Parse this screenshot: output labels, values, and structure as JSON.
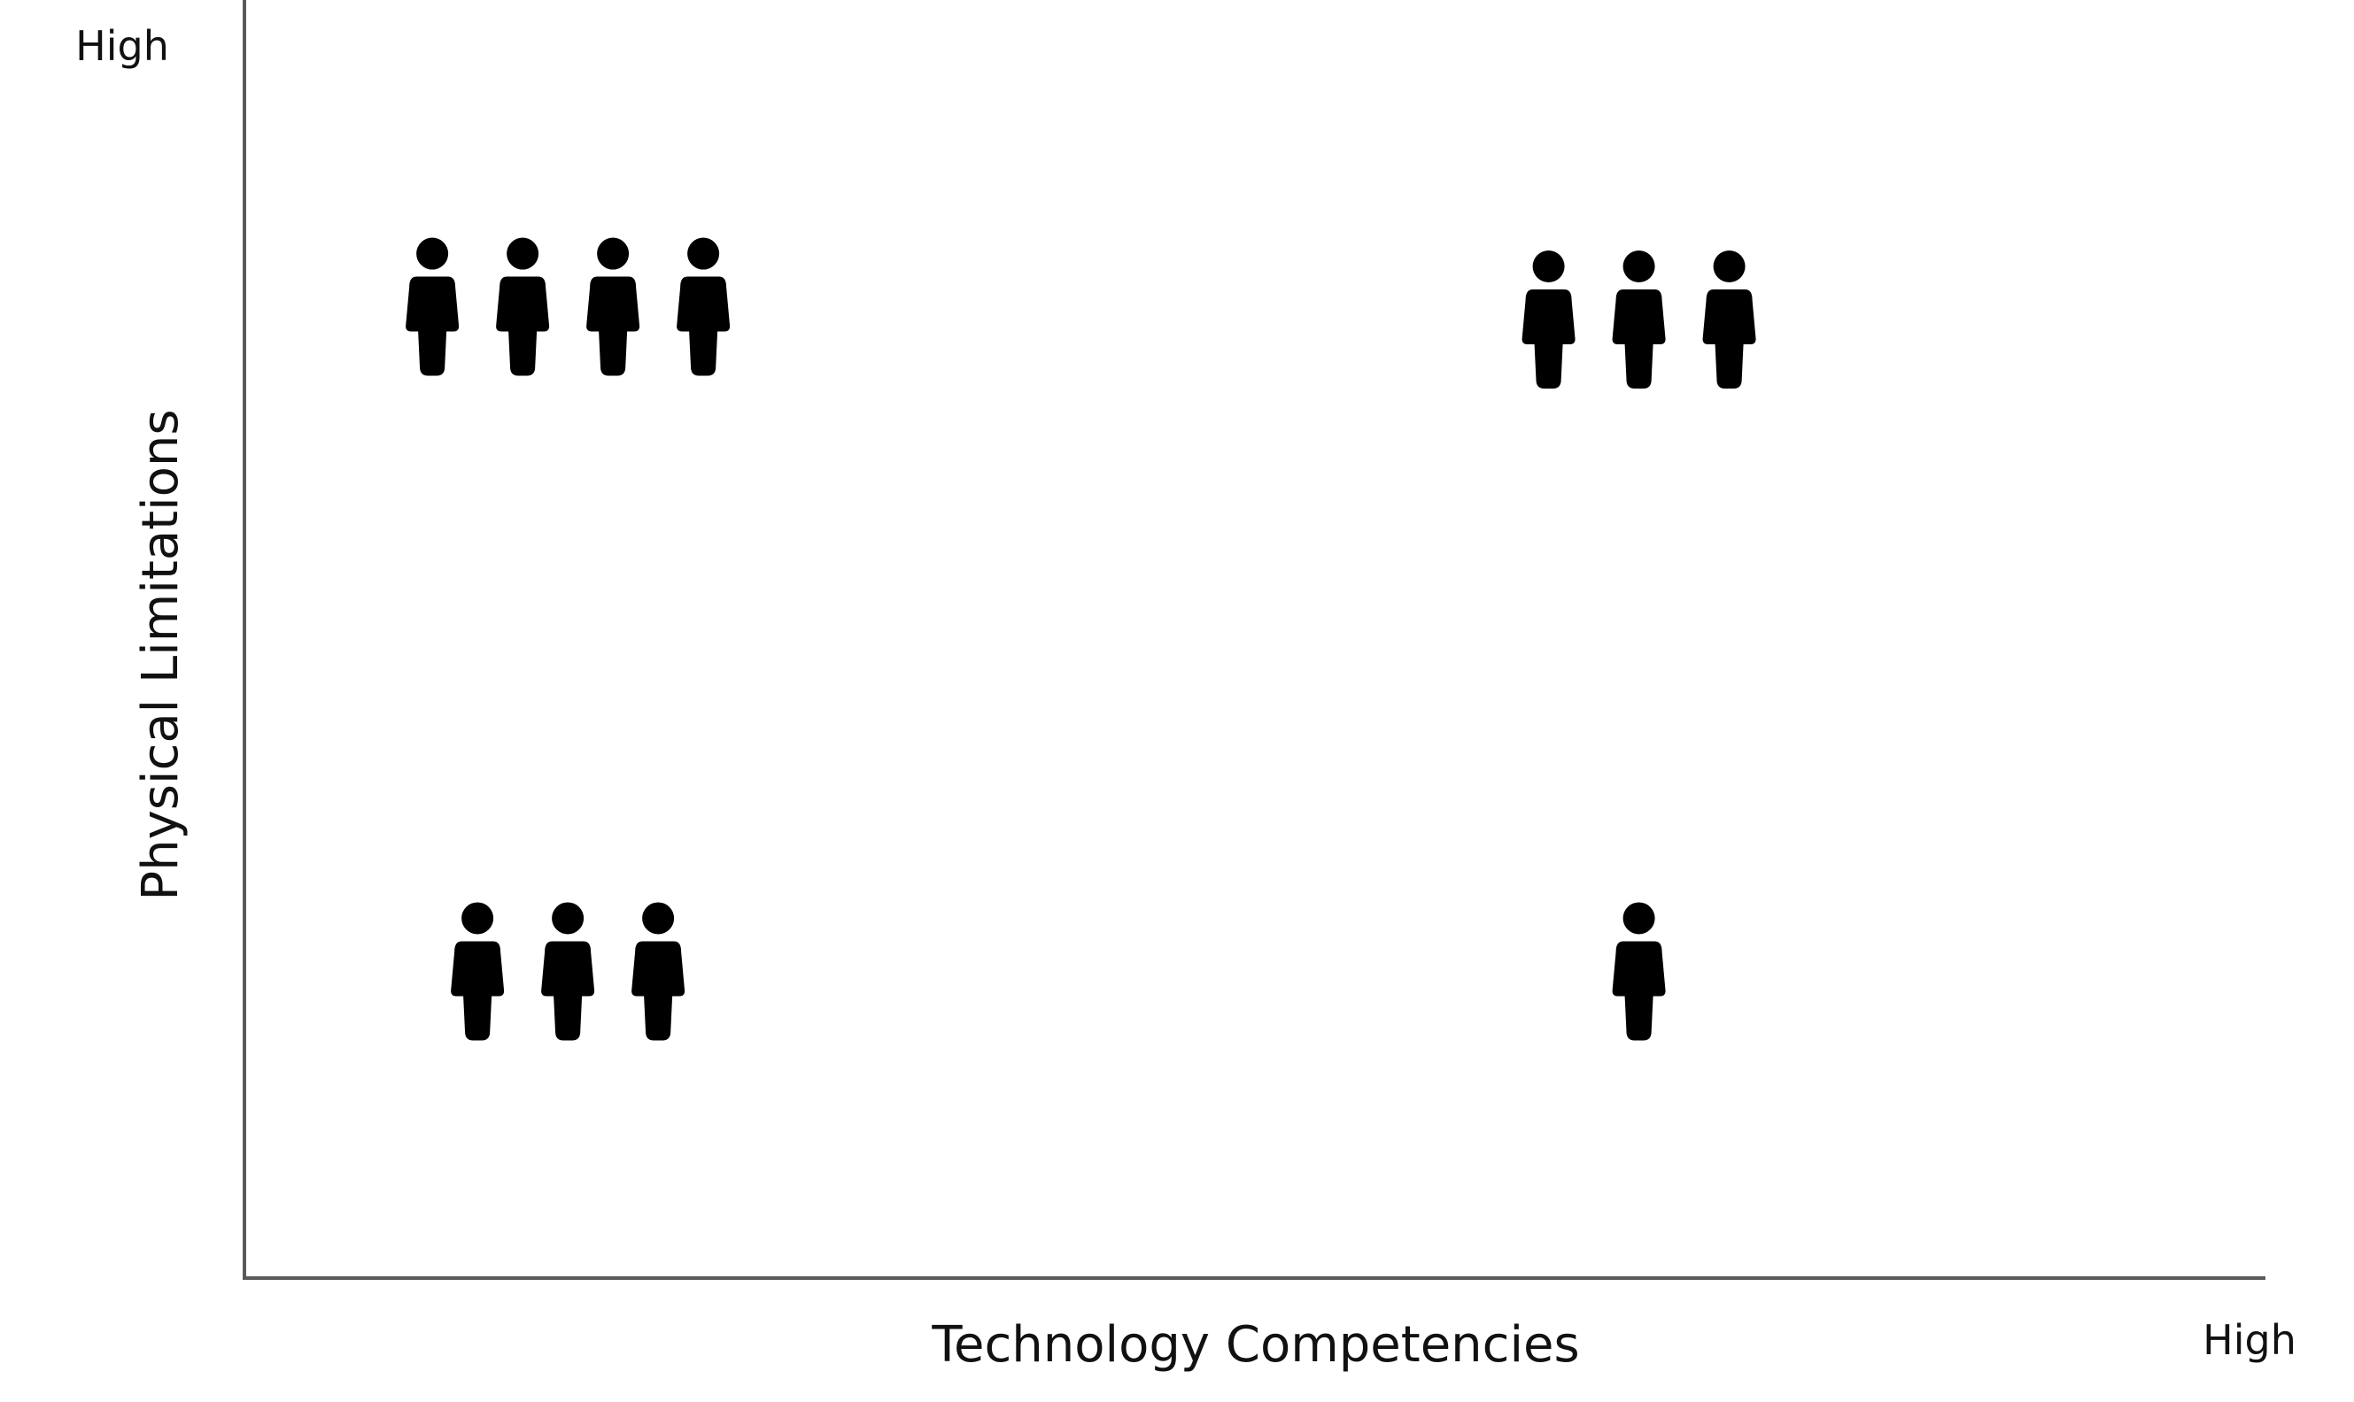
{
  "chart_data": {
    "type": "scatter",
    "title": "",
    "xlabel": "Technology Competencies",
    "ylabel": "Physical Limitations",
    "x_high_label": "High",
    "y_high_label": "High",
    "xlim": [
      0,
      1
    ],
    "ylim": [
      0,
      1
    ],
    "grid": false,
    "marker": "person-icon",
    "groups": [
      {
        "x": 0.16,
        "y": 0.76,
        "count": 4
      },
      {
        "x": 0.69,
        "y": 0.75,
        "count": 3
      },
      {
        "x": 0.16,
        "y": 0.24,
        "count": 3
      },
      {
        "x": 0.69,
        "y": 0.24,
        "count": 1
      }
    ]
  }
}
